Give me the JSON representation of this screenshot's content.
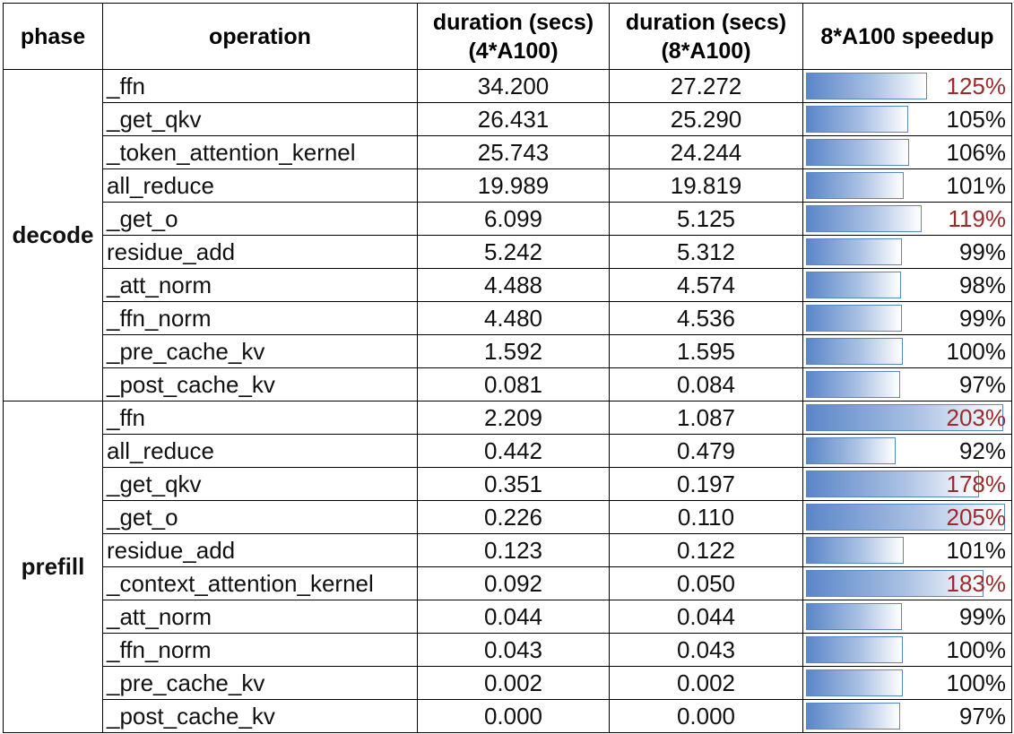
{
  "headers": {
    "phase": "phase",
    "operation": "operation",
    "dur4_line1": "duration (secs)",
    "dur4_line2": "(4*A100)",
    "dur8_line1": "duration (secs)",
    "dur8_line2": "(8*A100)",
    "speedup": "8*A100 speedup"
  },
  "colors": {
    "highlight_text": "#9c2a2a",
    "bar": "#5a86c8"
  },
  "groups": [
    {
      "phase": "decode",
      "rows": [
        {
          "op": "_ffn",
          "d4": "34.200",
          "d8": "27.272",
          "speedup": "125%",
          "value": 1.25,
          "hi": true
        },
        {
          "op": "_get_qkv",
          "d4": "26.431",
          "d8": "25.290",
          "speedup": "105%",
          "value": 1.05,
          "hi": false
        },
        {
          "op": "_token_attention_kernel",
          "d4": "25.743",
          "d8": "24.244",
          "speedup": "106%",
          "value": 1.06,
          "hi": false
        },
        {
          "op": "all_reduce",
          "d4": "19.989",
          "d8": "19.819",
          "speedup": "101%",
          "value": 1.01,
          "hi": false
        },
        {
          "op": "_get_o",
          "d4": "6.099",
          "d8": "5.125",
          "speedup": "119%",
          "value": 1.19,
          "hi": true
        },
        {
          "op": "residue_add",
          "d4": "5.242",
          "d8": "5.312",
          "speedup": "99%",
          "value": 0.99,
          "hi": false
        },
        {
          "op": "_att_norm",
          "d4": "4.488",
          "d8": "4.574",
          "speedup": "98%",
          "value": 0.98,
          "hi": false
        },
        {
          "op": "_ffn_norm",
          "d4": "4.480",
          "d8": "4.536",
          "speedup": "99%",
          "value": 0.99,
          "hi": false
        },
        {
          "op": "_pre_cache_kv",
          "d4": "1.592",
          "d8": "1.595",
          "speedup": "100%",
          "value": 1.0,
          "hi": false
        },
        {
          "op": "_post_cache_kv",
          "d4": "0.081",
          "d8": "0.084",
          "speedup": "97%",
          "value": 0.97,
          "hi": false
        }
      ]
    },
    {
      "phase": "prefill",
      "rows": [
        {
          "op": "_ffn",
          "d4": "2.209",
          "d8": "1.087",
          "speedup": "203%",
          "value": 2.03,
          "hi": true
        },
        {
          "op": "all_reduce",
          "d4": "0.442",
          "d8": "0.479",
          "speedup": "92%",
          "value": 0.92,
          "hi": false
        },
        {
          "op": "_get_qkv",
          "d4": "0.351",
          "d8": "0.197",
          "speedup": "178%",
          "value": 1.78,
          "hi": true
        },
        {
          "op": "_get_o",
          "d4": "0.226",
          "d8": "0.110",
          "speedup": "205%",
          "value": 2.05,
          "hi": true
        },
        {
          "op": "residue_add",
          "d4": "0.123",
          "d8": "0.122",
          "speedup": "101%",
          "value": 1.01,
          "hi": false
        },
        {
          "op": "_context_attention_kernel",
          "d4": "0.092",
          "d8": "0.050",
          "speedup": "183%",
          "value": 1.83,
          "hi": true
        },
        {
          "op": "_att_norm",
          "d4": "0.044",
          "d8": "0.044",
          "speedup": "99%",
          "value": 0.99,
          "hi": false
        },
        {
          "op": "_ffn_norm",
          "d4": "0.043",
          "d8": "0.043",
          "speedup": "100%",
          "value": 1.0,
          "hi": false
        },
        {
          "op": "_pre_cache_kv",
          "d4": "0.002",
          "d8": "0.002",
          "speedup": "100%",
          "value": 1.0,
          "hi": false
        },
        {
          "op": "_post_cache_kv",
          "d4": "0.000",
          "d8": "0.000",
          "speedup": "97%",
          "value": 0.97,
          "hi": false
        }
      ]
    }
  ]
}
